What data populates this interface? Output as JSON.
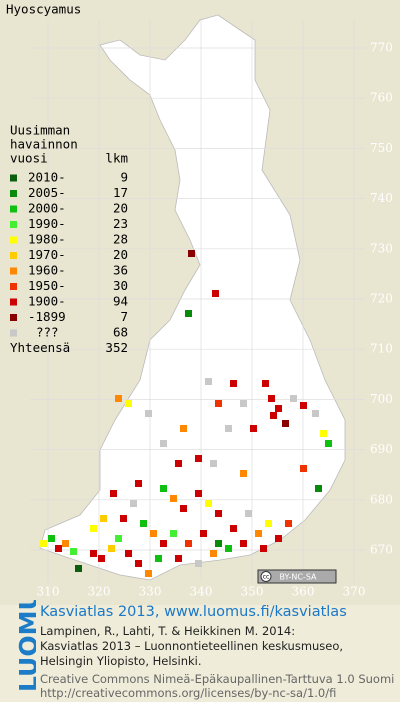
{
  "title": "Hyoscyamus",
  "legend": {
    "heading": [
      "Uusimman",
      "havainnon",
      "vuosi"
    ],
    "count_heading": "lkm",
    "rows": [
      {
        "label": "2010-",
        "count": 9,
        "color": "#0b5e0b"
      },
      {
        "label": "2005-",
        "count": 17,
        "color": "#0a8a0a"
      },
      {
        "label": "2000-",
        "count": 20,
        "color": "#10c010"
      },
      {
        "label": "1990-",
        "count": 23,
        "color": "#44ee33"
      },
      {
        "label": "1980-",
        "count": 28,
        "color": "#ffff00"
      },
      {
        "label": "1970-",
        "count": 20,
        "color": "#ffcc00"
      },
      {
        "label": "1960-",
        "count": 36,
        "color": "#ff8800"
      },
      {
        "label": "1950-",
        "count": 30,
        "color": "#ee3300"
      },
      {
        "label": "1900-",
        "count": 94,
        "color": "#cc0000"
      },
      {
        "label": "-1899",
        "count": 7,
        "color": "#880000"
      },
      {
        "label": "???",
        "count": 68,
        "color": "#c8c8c8"
      }
    ],
    "total_label": "Yhteensä",
    "total": 352
  },
  "grid": {
    "y_labels": [
      770,
      760,
      750,
      740,
      730,
      720,
      710,
      700,
      690,
      680,
      670
    ],
    "x_labels": [
      310,
      320,
      330,
      340,
      350,
      360,
      370
    ]
  },
  "license_badge": "BY-NC-SA",
  "side_logo": "LUOMUS",
  "footer": {
    "link_line": "Kasviatlas 2013, www.luomus.fi/kasviatlas",
    "citation": [
      "Lampinen, R., Lahti, T. & Heikkinen M. 2014:",
      "Kasviatlas 2013 – Luonnontieteellinen keskusmuseo,",
      "Helsingin Yliopisto, Helsinki."
    ],
    "license": [
      "Creative Commons Nimeä-Epäkaupallinen-Tarttuva 1.0 Suomi",
      "http://creativecommons.org/licenses/by-nc-sa/1.0/fi"
    ]
  }
}
